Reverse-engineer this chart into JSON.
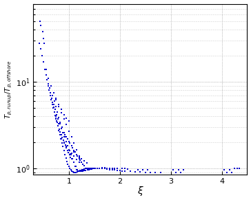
{
  "xlabel": "ξ",
  "ylabel": "$T_{p,run up}/T_{p,offshore}$",
  "xlim": [
    0.3,
    4.5
  ],
  "ylim": [
    0.85,
    80
  ],
  "dot_color": "#0000cc",
  "dot_size": 3,
  "x_data": [
    0.42,
    0.44,
    0.47,
    0.5,
    0.53,
    0.55,
    0.57,
    0.59,
    0.61,
    0.63,
    0.65,
    0.67,
    0.69,
    0.71,
    0.73,
    0.75,
    0.77,
    0.79,
    0.81,
    0.83,
    0.85,
    0.87,
    0.89,
    0.91,
    0.93,
    0.95,
    0.97,
    0.99,
    1.01,
    1.03,
    0.6,
    0.62,
    0.64,
    0.66,
    0.68,
    0.7,
    0.72,
    0.74,
    0.76,
    0.78,
    0.8,
    0.82,
    0.84,
    0.86,
    0.88,
    0.9,
    0.92,
    0.94,
    0.96,
    0.98,
    1.0,
    1.02,
    1.04,
    1.06,
    1.08,
    1.1,
    1.12,
    1.14,
    1.16,
    1.18,
    1.2,
    1.22,
    1.24,
    1.26,
    1.28,
    1.3,
    1.32,
    1.34,
    1.36,
    1.38,
    1.4,
    1.42,
    1.44,
    1.46,
    1.48,
    1.5,
    1.55,
    1.6,
    1.65,
    1.7,
    1.75,
    1.8,
    1.85,
    1.9,
    1.95,
    2.0,
    2.05,
    2.1,
    2.2,
    2.3,
    2.4,
    2.5,
    2.6,
    2.7,
    2.8,
    3.1,
    3.2,
    4.1,
    4.2,
    4.3,
    0.75,
    0.8,
    0.85,
    0.9,
    0.92,
    0.95,
    0.97,
    1.0,
    1.02,
    1.05,
    1.07,
    1.1,
    1.12,
    1.15,
    1.17,
    1.2,
    1.22,
    1.25,
    1.27,
    1.3,
    0.7,
    0.73,
    0.76,
    0.79,
    0.82,
    0.85,
    0.88,
    0.91,
    0.94,
    0.97,
    1.0,
    1.03,
    1.06,
    1.09,
    1.12,
    1.15,
    1.18,
    1.21,
    1.24,
    1.27,
    1.3,
    1.33,
    1.36,
    1.39,
    1.42,
    1.45,
    1.48,
    1.51,
    1.55,
    1.6,
    0.68,
    0.71,
    0.74,
    0.77,
    0.8,
    0.83,
    0.86,
    0.89,
    0.92,
    0.95,
    0.98,
    1.01,
    1.04,
    1.07,
    1.1,
    1.13,
    1.16,
    1.19,
    1.22,
    1.25,
    0.55,
    0.6,
    0.65,
    0.7,
    0.75,
    0.8,
    0.85,
    0.9,
    0.95,
    1.0,
    1.05,
    1.1,
    1.15,
    1.2,
    0.5,
    0.52,
    0.48,
    0.45,
    0.43,
    1.65,
    1.7,
    1.75,
    1.8,
    1.85,
    1.9,
    1.95,
    2.05,
    2.1,
    2.15,
    2.35,
    2.45,
    2.55,
    3.05,
    3.15,
    3.25,
    4.05,
    4.15,
    4.25,
    4.35,
    0.85,
    0.9,
    0.95,
    1.0,
    1.05,
    1.1,
    1.15,
    1.2,
    1.0,
    0.95,
    0.9,
    0.85,
    0.8,
    0.75,
    1.1,
    1.15,
    1.2,
    1.25,
    1.3,
    1.35
  ],
  "y_data": [
    28.0,
    24.0,
    20.0,
    17.0,
    14.0,
    12.0,
    10.5,
    9.0,
    8.0,
    7.0,
    6.2,
    5.5,
    5.0,
    4.5,
    4.1,
    3.7,
    3.4,
    3.1,
    2.85,
    2.65,
    2.45,
    2.28,
    2.12,
    1.98,
    1.85,
    1.73,
    1.62,
    1.52,
    1.43,
    1.35,
    9.5,
    8.5,
    7.5,
    6.5,
    5.8,
    5.1,
    4.5,
    4.0,
    3.5,
    3.1,
    2.75,
    2.45,
    2.2,
    1.98,
    1.78,
    1.6,
    1.45,
    1.32,
    1.21,
    1.12,
    1.05,
    1.0,
    0.96,
    0.93,
    0.91,
    0.9,
    0.9,
    0.9,
    0.91,
    0.92,
    0.93,
    0.94,
    0.95,
    0.96,
    0.97,
    0.98,
    0.99,
    1.0,
    1.0,
    1.0,
    1.0,
    1.0,
    1.0,
    1.0,
    1.0,
    1.0,
    1.0,
    1.0,
    1.0,
    0.99,
    0.98,
    0.97,
    0.96,
    0.96,
    0.95,
    0.94,
    0.93,
    0.92,
    0.92,
    0.91,
    0.91,
    0.9,
    0.9,
    0.9,
    0.9,
    0.9,
    0.9,
    0.9,
    0.9,
    1.0,
    3.8,
    3.3,
    2.9,
    2.6,
    2.45,
    2.3,
    2.18,
    2.05,
    1.95,
    1.82,
    1.72,
    1.62,
    1.54,
    1.45,
    1.38,
    1.3,
    1.24,
    1.17,
    1.12,
    1.07,
    5.5,
    4.8,
    4.2,
    3.7,
    3.3,
    2.9,
    2.6,
    2.3,
    2.05,
    1.83,
    1.63,
    1.46,
    1.3,
    1.17,
    1.06,
    0.97,
    0.92,
    0.92,
    0.92,
    0.93,
    0.94,
    0.95,
    0.96,
    0.97,
    0.98,
    0.98,
    0.99,
    0.99,
    1.0,
    1.0,
    7.0,
    6.0,
    5.2,
    4.5,
    3.9,
    3.4,
    3.0,
    2.6,
    2.3,
    2.05,
    1.82,
    1.62,
    1.45,
    1.3,
    1.17,
    1.06,
    0.97,
    0.92,
    0.92,
    0.92,
    14.0,
    11.0,
    9.0,
    7.5,
    6.2,
    5.2,
    4.4,
    3.7,
    3.2,
    2.7,
    2.3,
    1.95,
    1.65,
    1.4,
    32.0,
    28.0,
    38.0,
    45.0,
    50.0,
    1.02,
    1.01,
    1.0,
    1.0,
    1.0,
    1.0,
    0.99,
    0.99,
    0.99,
    0.98,
    0.97,
    0.97,
    0.97,
    0.97,
    0.97,
    0.97,
    0.97,
    0.97,
    1.0,
    1.0,
    2.2,
    2.0,
    1.8,
    1.65,
    1.5,
    1.38,
    1.27,
    1.18,
    3.5,
    3.8,
    4.2,
    4.8,
    5.5,
    6.5,
    1.55,
    1.45,
    1.35,
    1.28,
    1.22,
    1.16
  ]
}
